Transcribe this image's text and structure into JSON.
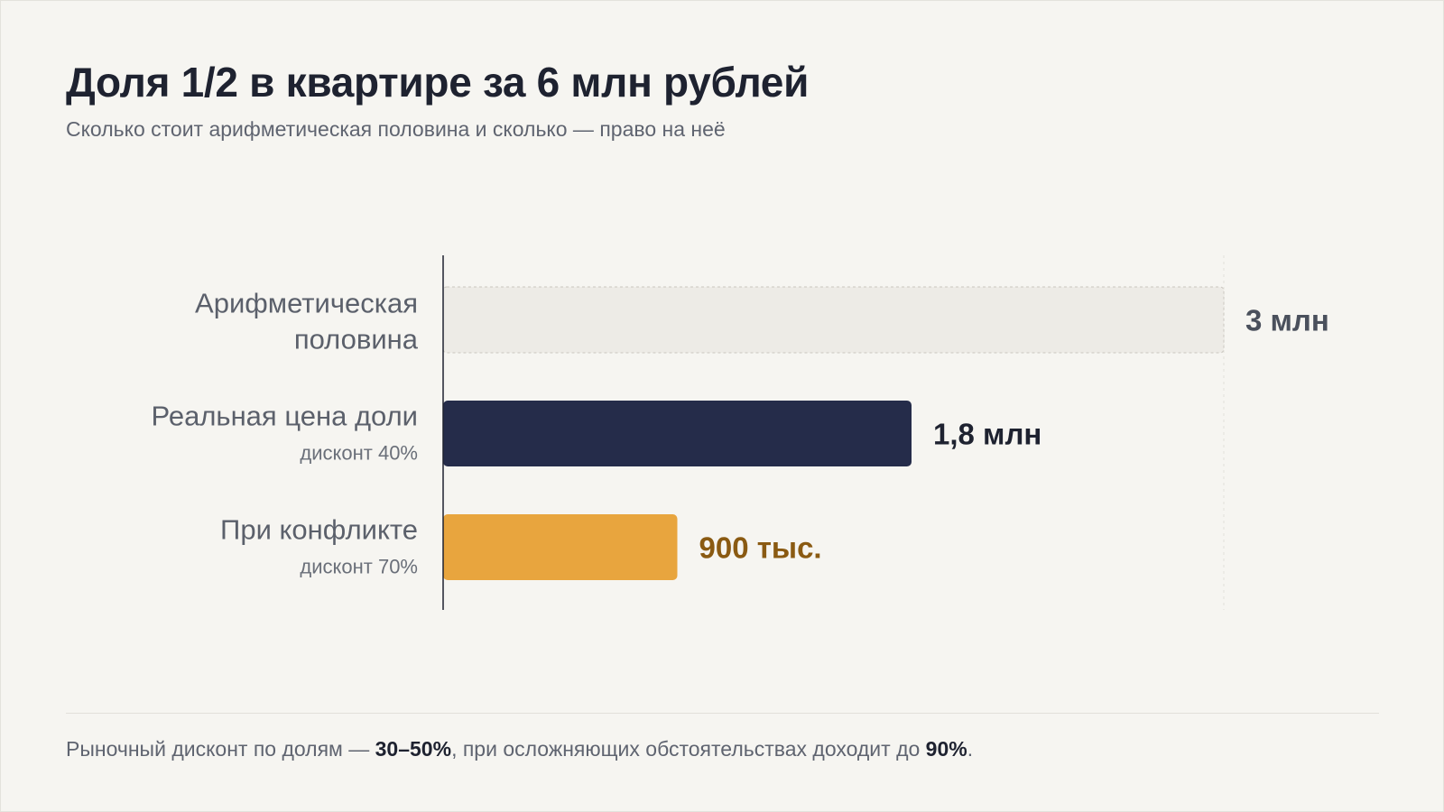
{
  "header": {
    "title": "Доля 1/2 в квартире за 6 млн рублей",
    "subtitle": "Сколько стоит арифметическая половина и сколько — право на неё"
  },
  "colors": {
    "reference_bar": "#edebe6",
    "real_bar": "#252c4a",
    "conflict_bar": "#e8a53e",
    "reference_label": "#4a505c",
    "real_label": "#1e2230",
    "conflict_label": "#8a5a12"
  },
  "chart_data": {
    "type": "bar",
    "orientation": "horizontal",
    "xlim": [
      0,
      3000000
    ],
    "categories": [
      {
        "name_lines": [
          "Арифметическая",
          "половина"
        ],
        "note": "",
        "value": 3000000,
        "value_label": "3 млн",
        "style": "reference"
      },
      {
        "name_lines": [
          "Реальная цена доли"
        ],
        "note": "дисконт 40%",
        "value": 1800000,
        "value_label": "1,8 млн",
        "style": "real"
      },
      {
        "name_lines": [
          "При конфликте"
        ],
        "note": "дисконт 70%",
        "value": 900000,
        "value_label": "900 тыс.",
        "style": "conflict"
      }
    ],
    "grid": false,
    "legend": "none"
  },
  "footer": {
    "part1": "Рыночный дисконт по долям — ",
    "bold1": "30–50%",
    "part2": ", при осложняющих обстоятельствах доходит до ",
    "bold2": "90%",
    "part3": "."
  }
}
